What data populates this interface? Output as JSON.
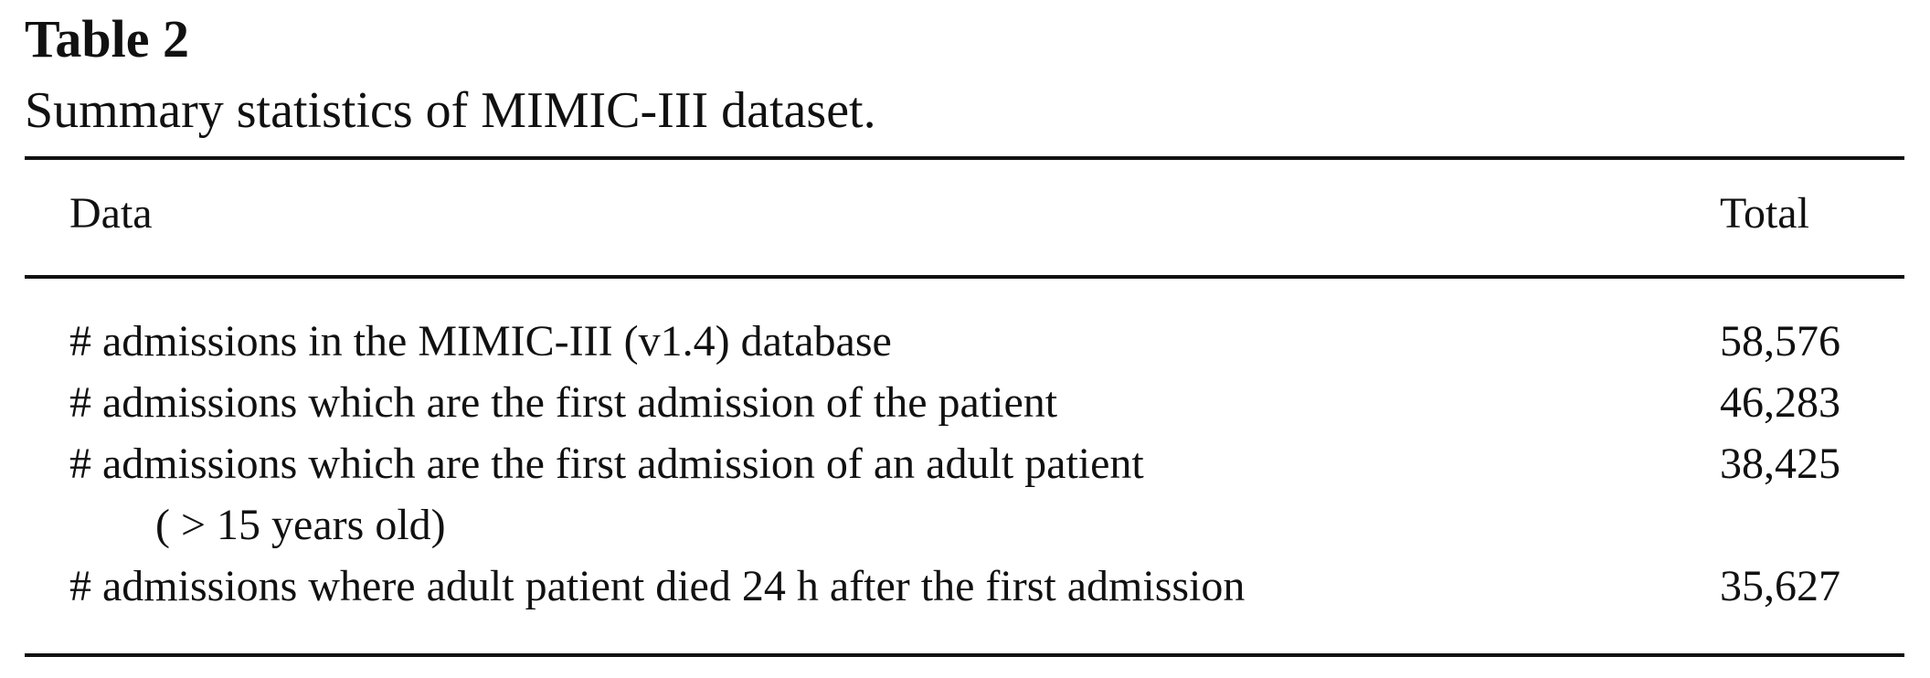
{
  "table": {
    "label": "Table 2",
    "caption": "Summary statistics of MIMIC-III dataset.",
    "headers": {
      "data": "Data",
      "total": "Total"
    },
    "rows": [
      {
        "text": "# admissions in the MIMIC-III (v1.4) database",
        "continuation": "",
        "total": "58,576"
      },
      {
        "text": "# admissions which are the first admission of the patient",
        "continuation": "",
        "total": "46,283"
      },
      {
        "text": "# admissions which are the first admission of an adult patient",
        "continuation": "( > 15 years old)",
        "total": "38,425"
      },
      {
        "text": "# admissions where adult patient died 24 h after the first admission",
        "continuation": "",
        "total": "35,627"
      }
    ]
  }
}
